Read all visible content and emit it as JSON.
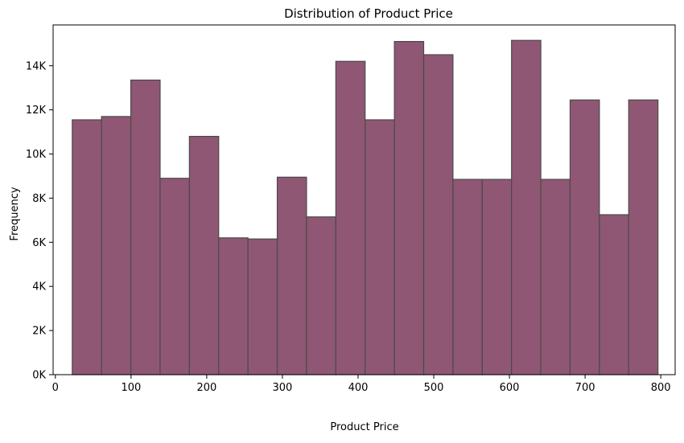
{
  "chart_data": {
    "type": "bar",
    "title": "Distribution of Product Price",
    "xlabel": "Product Price",
    "ylabel": "Frequency",
    "xlim": [
      -3,
      819
    ],
    "ylim": [
      0,
      15850
    ],
    "grid": false,
    "bar_color": "#8f5773",
    "edge_color": "#4a4a4a",
    "x_ticks": [
      {
        "value": 0,
        "label": "0"
      },
      {
        "value": 100,
        "label": "100"
      },
      {
        "value": 200,
        "label": "200"
      },
      {
        "value": 300,
        "label": "300"
      },
      {
        "value": 400,
        "label": "400"
      },
      {
        "value": 500,
        "label": "500"
      },
      {
        "value": 600,
        "label": "600"
      },
      {
        "value": 700,
        "label": "700"
      },
      {
        "value": 800,
        "label": "800"
      }
    ],
    "y_ticks": [
      {
        "value": 0,
        "label": "0K"
      },
      {
        "value": 2000,
        "label": "2K"
      },
      {
        "value": 4000,
        "label": "4K"
      },
      {
        "value": 6000,
        "label": "6K"
      },
      {
        "value": 8000,
        "label": "8K"
      },
      {
        "value": 10000,
        "label": "10K"
      },
      {
        "value": 12000,
        "label": "12K"
      },
      {
        "value": 14000,
        "label": "14K"
      }
    ],
    "bins": [
      {
        "x0": 22.3,
        "x1": 61.0,
        "count": 11550
      },
      {
        "x0": 61.0,
        "x1": 99.7,
        "count": 11700
      },
      {
        "x0": 99.7,
        "x1": 138.4,
        "count": 13350
      },
      {
        "x0": 138.4,
        "x1": 177.1,
        "count": 8900
      },
      {
        "x0": 177.1,
        "x1": 215.8,
        "count": 10800
      },
      {
        "x0": 215.8,
        "x1": 254.5,
        "count": 6200
      },
      {
        "x0": 254.5,
        "x1": 293.2,
        "count": 6150
      },
      {
        "x0": 293.2,
        "x1": 331.9,
        "count": 8950
      },
      {
        "x0": 331.9,
        "x1": 370.6,
        "count": 7150
      },
      {
        "x0": 370.6,
        "x1": 409.3,
        "count": 14200
      },
      {
        "x0": 409.3,
        "x1": 448.0,
        "count": 11550
      },
      {
        "x0": 448.0,
        "x1": 486.7,
        "count": 15100
      },
      {
        "x0": 486.7,
        "x1": 525.4,
        "count": 14500
      },
      {
        "x0": 525.4,
        "x1": 564.1,
        "count": 8850
      },
      {
        "x0": 564.1,
        "x1": 602.8,
        "count": 8850
      },
      {
        "x0": 602.8,
        "x1": 641.5,
        "count": 15150
      },
      {
        "x0": 641.5,
        "x1": 680.2,
        "count": 8850
      },
      {
        "x0": 680.2,
        "x1": 718.9,
        "count": 12450
      },
      {
        "x0": 718.9,
        "x1": 757.6,
        "count": 7250
      },
      {
        "x0": 757.6,
        "x1": 796.3,
        "count": 12450
      }
    ]
  }
}
